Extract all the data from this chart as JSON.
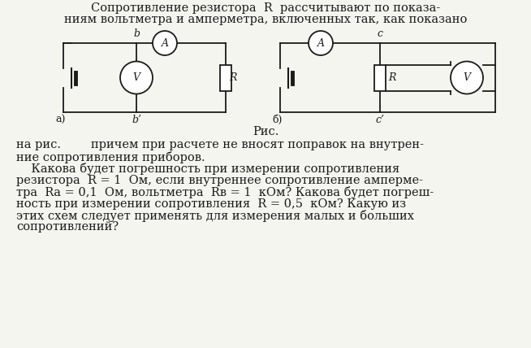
{
  "title_line1": "Сопротивление резистора  R  рассчитывают по показа-",
  "title_line2": "ниям вольтметра и амперметра, включенных так, как показано",
  "fig_label": "Рис.",
  "text_line1": "на рис.        причем при расчете не вносят поправок на внутрен-",
  "text_line2": "ние сопротивления приборов.",
  "para_line1": "    Какова будет погрешность при измерении сопротивления",
  "para_line2": "резистора  R = 1  Ом, если внутреннее сопротивление амперме-",
  "para_line3": "тра  Rа = 0,1  Ом, вольтметра  Rв = 1  кОм? Какова будет погреш-",
  "para_line4": "ность при измерении сопротивления  R = 0,5  кОм? Какую из",
  "para_line5": "этих схем следует применять для измерения малых и больших",
  "para_line6": "сопротивлений?",
  "label_a": "а)",
  "label_b": "б)",
  "label_b_top": "b",
  "label_b_bottom": "b’",
  "label_c_top": "c",
  "label_c_bottom": "c’",
  "bg_color": "#f5f5f0",
  "line_color": "#1a1a1a",
  "font_size_title": 10.5,
  "font_size_body": 10.5,
  "font_size_small": 9
}
